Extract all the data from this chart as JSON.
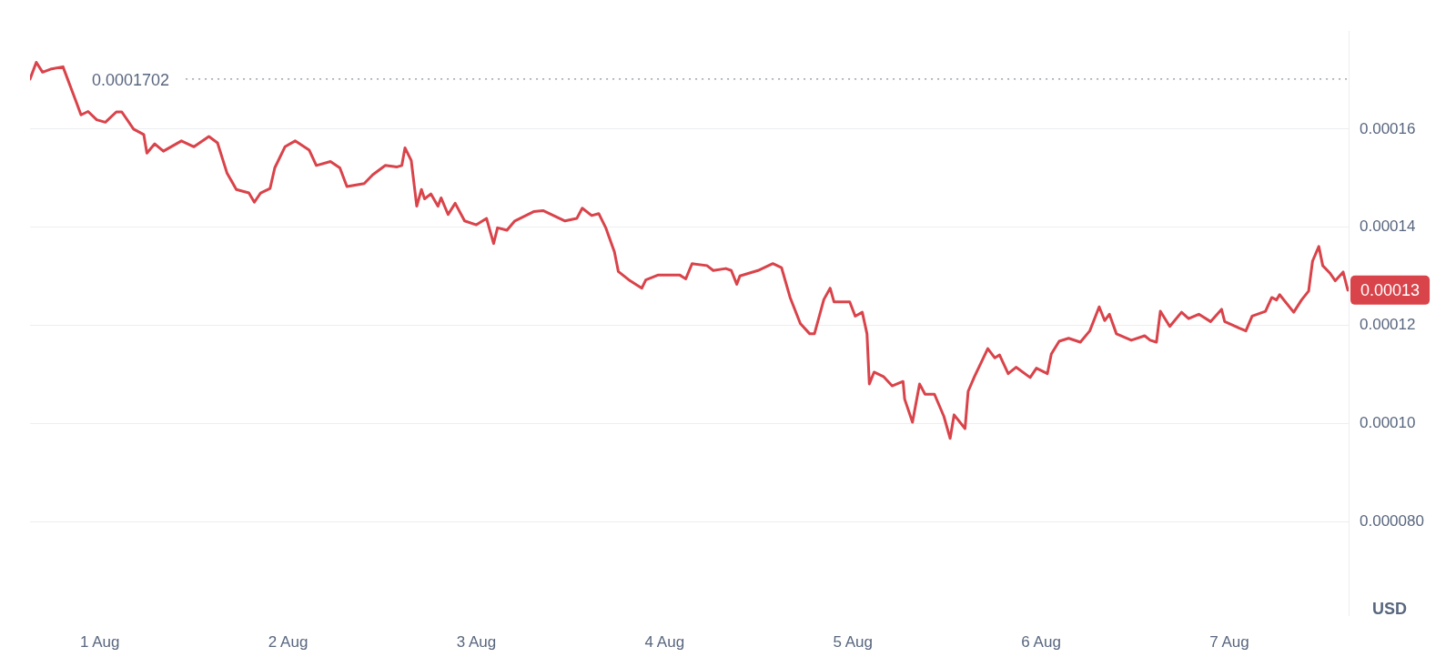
{
  "chart_data": {
    "type": "line",
    "ylabel": "USD",
    "annotations": [
      "0.00013"
    ],
    "x": [
      "--07-31T15:06",
      "--07-31T15:54",
      "--07-31T16:42",
      "--07-31T17:42",
      "--07-31T19:18",
      "--07-31T21:00",
      "--07-31T21:36",
      "--07-31T22:30",
      "--07-31T23:36",
      "--08-01T00:42",
      "--08-01T02:06",
      "--08-01T02:48",
      "--08-01T04:18",
      "--08-01T05:36",
      "--08-01T06:00",
      "--08-01T07:00",
      "--08-01T08:06",
      "--08-01T10:24",
      "--08-01T12:00",
      "--08-01T13:54",
      "--08-01T15:00",
      "--08-01T16:12",
      "--08-01T17:24",
      "--08-01T19:00",
      "--08-01T19:42",
      "--08-01T20:30",
      "--08-01T21:42",
      "--08-01T22:18",
      "--08-01T23:36",
      "--08-02T00:54",
      "--08-02T02:42",
      "--08-02T03:36",
      "--08-02T05:24",
      "--08-02T06:36",
      "--08-02T07:30",
      "--08-02T09:42",
      "--08-02T10:48",
      "--08-02T12:24",
      "--08-02T13:54",
      "--08-02T14:30",
      "--08-02T14:54",
      "--08-02T15:42",
      "--08-02T16:24",
      "--08-02T17:00",
      "--08-02T17:24",
      "--08-02T18:12",
      "--08-02T19:06",
      "--08-02T19:30",
      "--08-02T20:24",
      "--08-02T21:18",
      "--08-02T22:30",
      "--08-03T00:00",
      "--08-03T01:18",
      "--08-03T02:12",
      "--08-03T02:42",
      "--08-03T03:54",
      "--08-03T04:54",
      "--08-03T07:18",
      "--08-03T08:30",
      "--08-03T11:18",
      "--08-03T12:48",
      "--08-03T13:30",
      "--08-03T14:42",
      "--08-03T15:36",
      "--08-03T16:30",
      "--08-03T17:36",
      "--08-03T18:06",
      "--08-03T19:36",
      "--08-03T21:06",
      "--08-03T21:36",
      "--08-03T23:12",
      "--08-04T01:54",
      "--08-04T02:42",
      "--08-04T03:30",
      "--08-04T05:24",
      "--08-04T06:12",
      "--08-04T07:48",
      "--08-04T08:30",
      "--08-04T09:12",
      "--08-04T09:36",
      "--08-04T11:54",
      "--08-04T13:48",
      "--08-04T14:54",
      "--08-04T16:00",
      "--08-04T17:18",
      "--08-04T18:30",
      "--08-04T19:06",
      "--08-04T20:18",
      "--08-04T21:06",
      "--08-04T21:36",
      "--08-04T23:36",
      "--08-05T00:18",
      "--08-05T01:12",
      "--08-05T01:48",
      "--08-05T02:06",
      "--08-05T02:42",
      "--08-05T03:54",
      "--08-05T05:00",
      "--08-05T06:24",
      "--08-05T06:36",
      "--08-05T07:36",
      "--08-05T08:30",
      "--08-05T09:12",
      "--08-05T10:24",
      "--08-05T11:36",
      "--08-05T12:24",
      "--08-05T12:54",
      "--08-05T14:18",
      "--08-05T14:42",
      "--08-05T15:30",
      "--08-05T17:12",
      "--08-05T18:06",
      "--08-05T18:42",
      "--08-05T19:48",
      "--08-05T20:48",
      "--08-05T22:36",
      "--08-05T23:24",
      "--08-06T00:48",
      "--08-06T01:18",
      "--08-06T02:18",
      "--08-06T03:30",
      "--08-06T05:00",
      "--08-06T06:12",
      "--08-06T07:24",
      "--08-06T08:06",
      "--08-06T08:42",
      "--08-06T09:36",
      "--08-06T11:30",
      "--08-06T13:12",
      "--08-06T13:54",
      "--08-06T14:42",
      "--08-06T15:12",
      "--08-06T16:24",
      "--08-06T17:54",
      "--08-06T18:48",
      "--08-06T20:06",
      "--08-06T21:36",
      "--08-06T23:00",
      "--08-06T23:24",
      "--08-07T01:12",
      "--08-07T02:06",
      "--08-07T02:54",
      "--08-07T04:36",
      "--08-07T05:24",
      "--08-07T06:00",
      "--08-07T06:24",
      "--08-07T08:12",
      "--08-07T09:12",
      "--08-07T10:06",
      "--08-07T10:36",
      "--08-07T11:24",
      "--08-07T11:54",
      "--08-07T12:48",
      "--08-07T13:30",
      "--08-07T14:30",
      "--08-07T15:06"
    ],
    "series": [
      {
        "color": "#d9434a",
        "values": [
          0.0001702,
          0.0001736,
          0.0001716,
          0.0001722,
          0.0001727,
          0.0001655,
          0.0001629,
          0.0001636,
          0.0001619,
          0.0001614,
          0.0001635,
          0.0001635,
          0.00016,
          0.0001589,
          0.0001551,
          0.000157,
          0.0001555,
          0.0001576,
          0.0001564,
          0.0001585,
          0.0001572,
          0.0001511,
          0.0001477,
          0.000147,
          0.0001451,
          0.000147,
          0.0001479,
          0.0001521,
          0.0001564,
          0.0001576,
          0.0001557,
          0.0001526,
          0.0001534,
          0.0001521,
          0.0001483,
          0.0001489,
          0.0001507,
          0.0001526,
          0.0001523,
          0.0001526,
          0.0001562,
          0.0001536,
          0.0001443,
          0.0001477,
          0.0001458,
          0.0001468,
          0.0001443,
          0.000146,
          0.0001426,
          0.0001449,
          0.0001413,
          0.0001405,
          0.0001418,
          0.0001367,
          0.0001399,
          0.0001394,
          0.0001413,
          0.0001432,
          0.0001434,
          0.0001413,
          0.0001418,
          0.0001439,
          0.0001424,
          0.0001428,
          0.0001399,
          0.000135,
          0.000131,
          0.0001291,
          0.0001276,
          0.0001293,
          0.0001303,
          0.0001303,
          0.0001295,
          0.0001326,
          0.0001322,
          0.0001312,
          0.0001316,
          0.0001312,
          0.0001284,
          0.0001301,
          0.0001312,
          0.0001326,
          0.0001318,
          0.0001257,
          0.0001204,
          0.0001183,
          0.0001183,
          0.0001253,
          0.0001276,
          0.0001248,
          0.0001248,
          0.0001219,
          0.0001227,
          0.0001183,
          0.0001081,
          0.0001105,
          0.0001096,
          0.0001077,
          0.0001086,
          0.000105,
          0.0001003,
          0.0001081,
          0.000106,
          0.000106,
          0.0001015,
          9.7e-05,
          0.0001018,
          9.9e-05,
          0.0001066,
          0.0001096,
          0.0001153,
          0.0001134,
          0.000114,
          0.0001102,
          0.0001115,
          0.0001094,
          0.0001113,
          0.0001102,
          0.0001142,
          0.0001168,
          0.0001174,
          0.0001166,
          0.0001189,
          0.0001238,
          0.000121,
          0.0001223,
          0.0001183,
          0.000117,
          0.0001179,
          0.000117,
          0.0001166,
          0.0001229,
          0.0001198,
          0.0001227,
          0.0001214,
          0.0001223,
          0.0001208,
          0.0001233,
          0.0001208,
          0.0001195,
          0.0001189,
          0.0001219,
          0.0001229,
          0.0001257,
          0.0001252,
          0.0001263,
          0.0001227,
          0.0001252,
          0.000127,
          0.0001331,
          0.0001361,
          0.0001322,
          0.0001307,
          0.0001291,
          0.0001309,
          0.0001272
        ]
      }
    ],
    "xlim": [
      "--07-31T15:06",
      "--08-07T15:12"
    ],
    "xticks": [
      {
        "value": "--08-01",
        "label": "1 Aug"
      },
      {
        "value": "--08-02",
        "label": "2 Aug"
      },
      {
        "value": "--08-03",
        "label": "3 Aug"
      },
      {
        "value": "--08-04",
        "label": "4 Aug"
      },
      {
        "value": "--08-05",
        "label": "5 Aug"
      },
      {
        "value": "--08-06",
        "label": "6 Aug"
      },
      {
        "value": "--08-07",
        "label": "7 Aug"
      }
    ],
    "ylim": [
      6.1e-05,
      0.00018
    ],
    "yticks": [
      {
        "value": 8e-05,
        "label": "0.000080"
      },
      {
        "value": 0.0001,
        "label": "0.00010"
      },
      0.00012,
      0.00014,
      0.00016
    ],
    "ref_lines": [
      {
        "axis": "y",
        "value": 0.0001702,
        "label": "0.0001702",
        "line_style": "dotted",
        "color": "#8a8f99"
      }
    ],
    "grid": "y",
    "legend": false,
    "marker": "none",
    "line_style": "solid"
  }
}
